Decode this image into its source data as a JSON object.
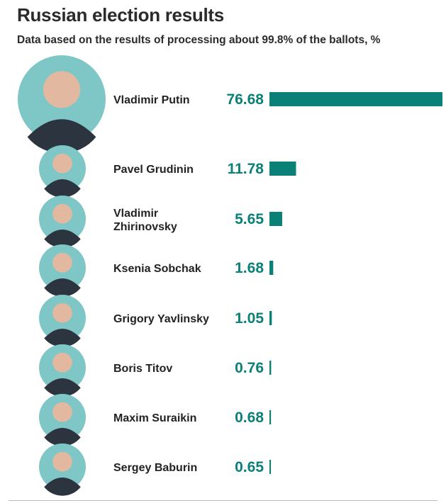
{
  "title": "Russian election results",
  "subtitle": "Data based on the results of processing about 99.8% of the ballots, %",
  "colors": {
    "bar": "#0b8077",
    "value_text": "#0b8077",
    "avatar_ring": "#7fc7c6"
  },
  "chart_data": {
    "type": "bar",
    "orientation": "horizontal",
    "title": "Russian election results",
    "subtitle": "Data based on the results of processing about 99.8% of the ballots, %",
    "categories": [
      "Vladimir Putin",
      "Pavel Grudinin",
      "Vladimir Zhirinovsky",
      "Ksenia Sobchak",
      "Grigory Yavlinsky",
      "Boris Titov",
      "Maxim Suraikin",
      "Sergey Baburin"
    ],
    "values": [
      76.68,
      11.78,
      5.65,
      1.68,
      1.05,
      0.76,
      0.68,
      0.65
    ],
    "value_labels": [
      "76.68",
      "11.78",
      "5.65",
      "1.68",
      "1.05",
      "0.76",
      "0.68",
      "0.65"
    ],
    "xlim": [
      0,
      76.68
    ],
    "grid": false,
    "legend": "none"
  }
}
